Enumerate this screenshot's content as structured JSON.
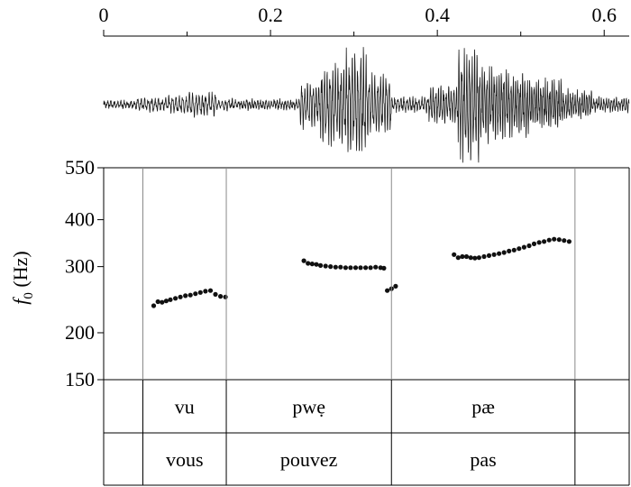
{
  "chart_data": {
    "type": "scatter",
    "time_axis": {
      "ticks": [
        0,
        0.2,
        0.4,
        0.6
      ],
      "tick_labels": [
        "0",
        "0.2",
        "0.4",
        "0.6"
      ],
      "minor_ticks": [
        0.1,
        0.3,
        0.5
      ],
      "range": [
        0,
        0.63
      ]
    },
    "waveform": {
      "segments": [
        {
          "t0": 0.0,
          "t1": 0.04,
          "amp": 0.07,
          "period": 0.004
        },
        {
          "t0": 0.04,
          "t1": 0.07,
          "amp": 0.11,
          "period": 0.0042
        },
        {
          "t0": 0.07,
          "t1": 0.1,
          "amp": 0.14,
          "period": 0.0041
        },
        {
          "t0": 0.1,
          "t1": 0.135,
          "amp": 0.2,
          "period": 0.0039
        },
        {
          "t0": 0.135,
          "t1": 0.16,
          "amp": 0.09,
          "period": 0.004
        },
        {
          "t0": 0.16,
          "t1": 0.235,
          "amp": 0.08,
          "period": 0.0033
        },
        {
          "t0": 0.235,
          "t1": 0.26,
          "amp": 0.4,
          "period": 0.0034
        },
        {
          "t0": 0.26,
          "t1": 0.29,
          "amp": 0.72,
          "period": 0.0033
        },
        {
          "t0": 0.29,
          "t1": 0.315,
          "amp": 0.95,
          "period": 0.0034
        },
        {
          "t0": 0.315,
          "t1": 0.345,
          "amp": 0.55,
          "period": 0.0034
        },
        {
          "t0": 0.345,
          "t1": 0.39,
          "amp": 0.12,
          "period": 0.0036
        },
        {
          "t0": 0.39,
          "t1": 0.425,
          "amp": 0.32,
          "period": 0.0031
        },
        {
          "t0": 0.425,
          "t1": 0.45,
          "amp": 1.0,
          "period": 0.0031
        },
        {
          "t0": 0.45,
          "t1": 0.48,
          "amp": 0.65,
          "period": 0.0029
        },
        {
          "t0": 0.48,
          "t1": 0.51,
          "amp": 0.55,
          "period": 0.0028
        },
        {
          "t0": 0.51,
          "t1": 0.55,
          "amp": 0.42,
          "period": 0.0027
        },
        {
          "t0": 0.55,
          "t1": 0.585,
          "amp": 0.25,
          "period": 0.0028
        },
        {
          "t0": 0.585,
          "t1": 0.63,
          "amp": 0.12,
          "period": 0.003
        }
      ]
    },
    "f0": {
      "ylabel": "f0 (Hz)",
      "ylabel_main": "f",
      "ylabel_sub": "0",
      "ylabel_unit": " (Hz)",
      "scale": "log",
      "ylim": [
        150,
        550
      ],
      "yticks": [
        150,
        200,
        300,
        400,
        550
      ],
      "ytick_labels": [
        "150",
        "200",
        "300",
        "400",
        "550"
      ],
      "segments": [
        {
          "x": [
            0.06,
            0.065,
            0.07,
            0.075,
            0.08,
            0.086,
            0.092,
            0.098,
            0.104,
            0.11,
            0.116,
            0.122,
            0.128,
            0.134,
            0.14,
            0.146
          ],
          "y": [
            236,
            242,
            241,
            243,
            245,
            247,
            249,
            251,
            252,
            254,
            256,
            258,
            259,
            253,
            250,
            249
          ]
        },
        {
          "x": [
            0.24,
            0.245,
            0.25,
            0.255,
            0.26,
            0.266,
            0.272,
            0.278,
            0.284,
            0.29,
            0.296,
            0.302,
            0.308,
            0.314,
            0.32,
            0.326,
            0.332,
            0.336
          ],
          "y": [
            311,
            306,
            305,
            304,
            302,
            301,
            300,
            299,
            299,
            298,
            298,
            298,
            298,
            298,
            298,
            299,
            298,
            297
          ]
        },
        {
          "x": [
            0.34,
            0.345,
            0.35
          ],
          "y": [
            259,
            262,
            266
          ]
        },
        {
          "x": [
            0.42,
            0.425,
            0.43,
            0.435,
            0.44,
            0.445,
            0.45,
            0.456,
            0.462,
            0.468,
            0.474,
            0.48,
            0.486,
            0.492,
            0.498,
            0.504,
            0.51,
            0.516,
            0.522,
            0.528,
            0.534,
            0.54,
            0.546,
            0.552,
            0.558
          ],
          "y": [
            323,
            317,
            319,
            319,
            317,
            316,
            317,
            319,
            321,
            323,
            325,
            327,
            330,
            332,
            335,
            338,
            341,
            345,
            348,
            350,
            353,
            355,
            354,
            352,
            350
          ]
        }
      ]
    },
    "tiers": [
      {
        "intervals": [
          {
            "t0": 0.0,
            "t1": 0.047,
            "label": ""
          },
          {
            "t0": 0.047,
            "t1": 0.147,
            "label": "vu"
          },
          {
            "t0": 0.147,
            "t1": 0.345,
            "label": "pwẹ"
          },
          {
            "t0": 0.345,
            "t1": 0.565,
            "label": "pæ"
          },
          {
            "t0": 0.565,
            "t1": 0.63,
            "label": ""
          }
        ]
      },
      {
        "intervals": [
          {
            "t0": 0.0,
            "t1": 0.047,
            "label": ""
          },
          {
            "t0": 0.047,
            "t1": 0.147,
            "label": "vous"
          },
          {
            "t0": 0.147,
            "t1": 0.345,
            "label": "pouvez"
          },
          {
            "t0": 0.345,
            "t1": 0.565,
            "label": "pas"
          },
          {
            "t0": 0.565,
            "t1": 0.63,
            "label": ""
          }
        ]
      }
    ],
    "colors": {
      "ink": "#000000",
      "gridline": "#8a8a8a",
      "waveform": "#1a1a1a",
      "points": "#111111"
    }
  }
}
